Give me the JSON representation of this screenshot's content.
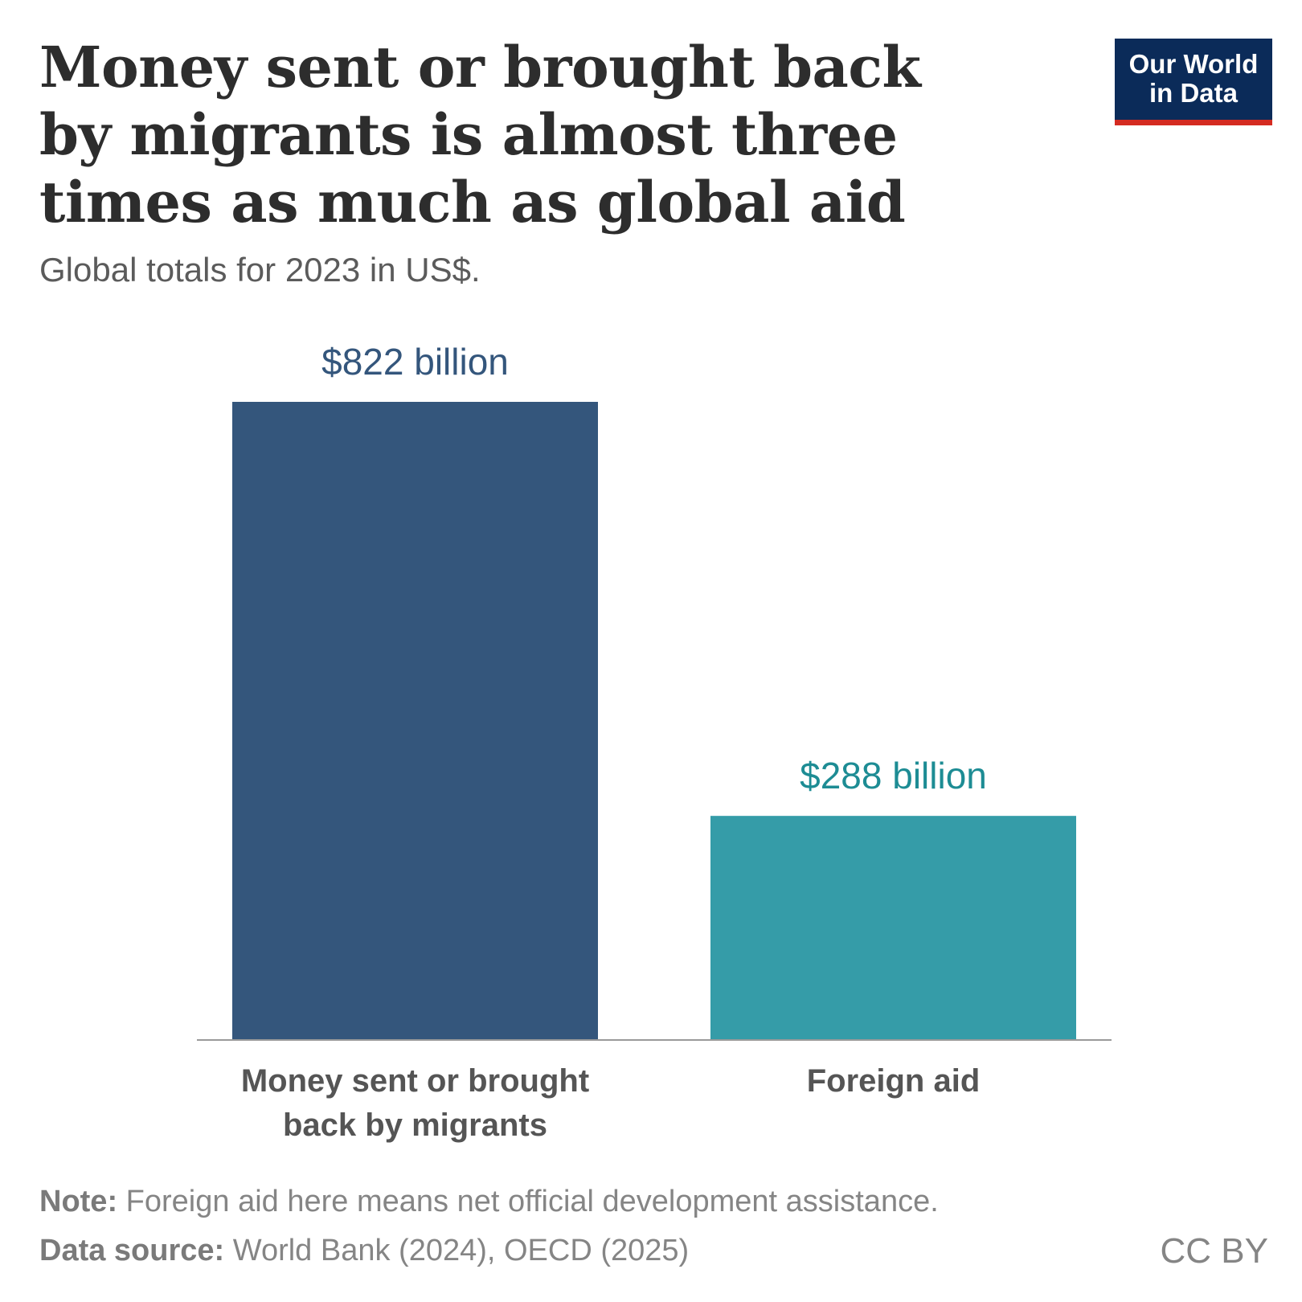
{
  "header": {
    "title": "Money sent or brought back by migrants is almost three times as much as global aid",
    "subtitle": "Global totals for 2023 in US$."
  },
  "logo": {
    "line1": "Our World",
    "line2": "in Data"
  },
  "chart_data": {
    "type": "bar",
    "categories": [
      "Money sent or brought back by migrants",
      "Foreign aid"
    ],
    "values": [
      822,
      288
    ],
    "data_labels": [
      "$822 billion",
      "$288 billion"
    ],
    "colors": [
      "#34567c",
      "#359ca8"
    ],
    "label_colors": [
      "#34567c",
      "#1d8c94"
    ],
    "ylim": [
      0,
      822
    ],
    "grid": false
  },
  "footer": {
    "note_label": "Note:",
    "note_text": " Foreign aid here means net official development assistance.",
    "source_label": "Data source:",
    "source_text": " World Bank (2024), OECD (2025)",
    "license": "CC BY"
  }
}
